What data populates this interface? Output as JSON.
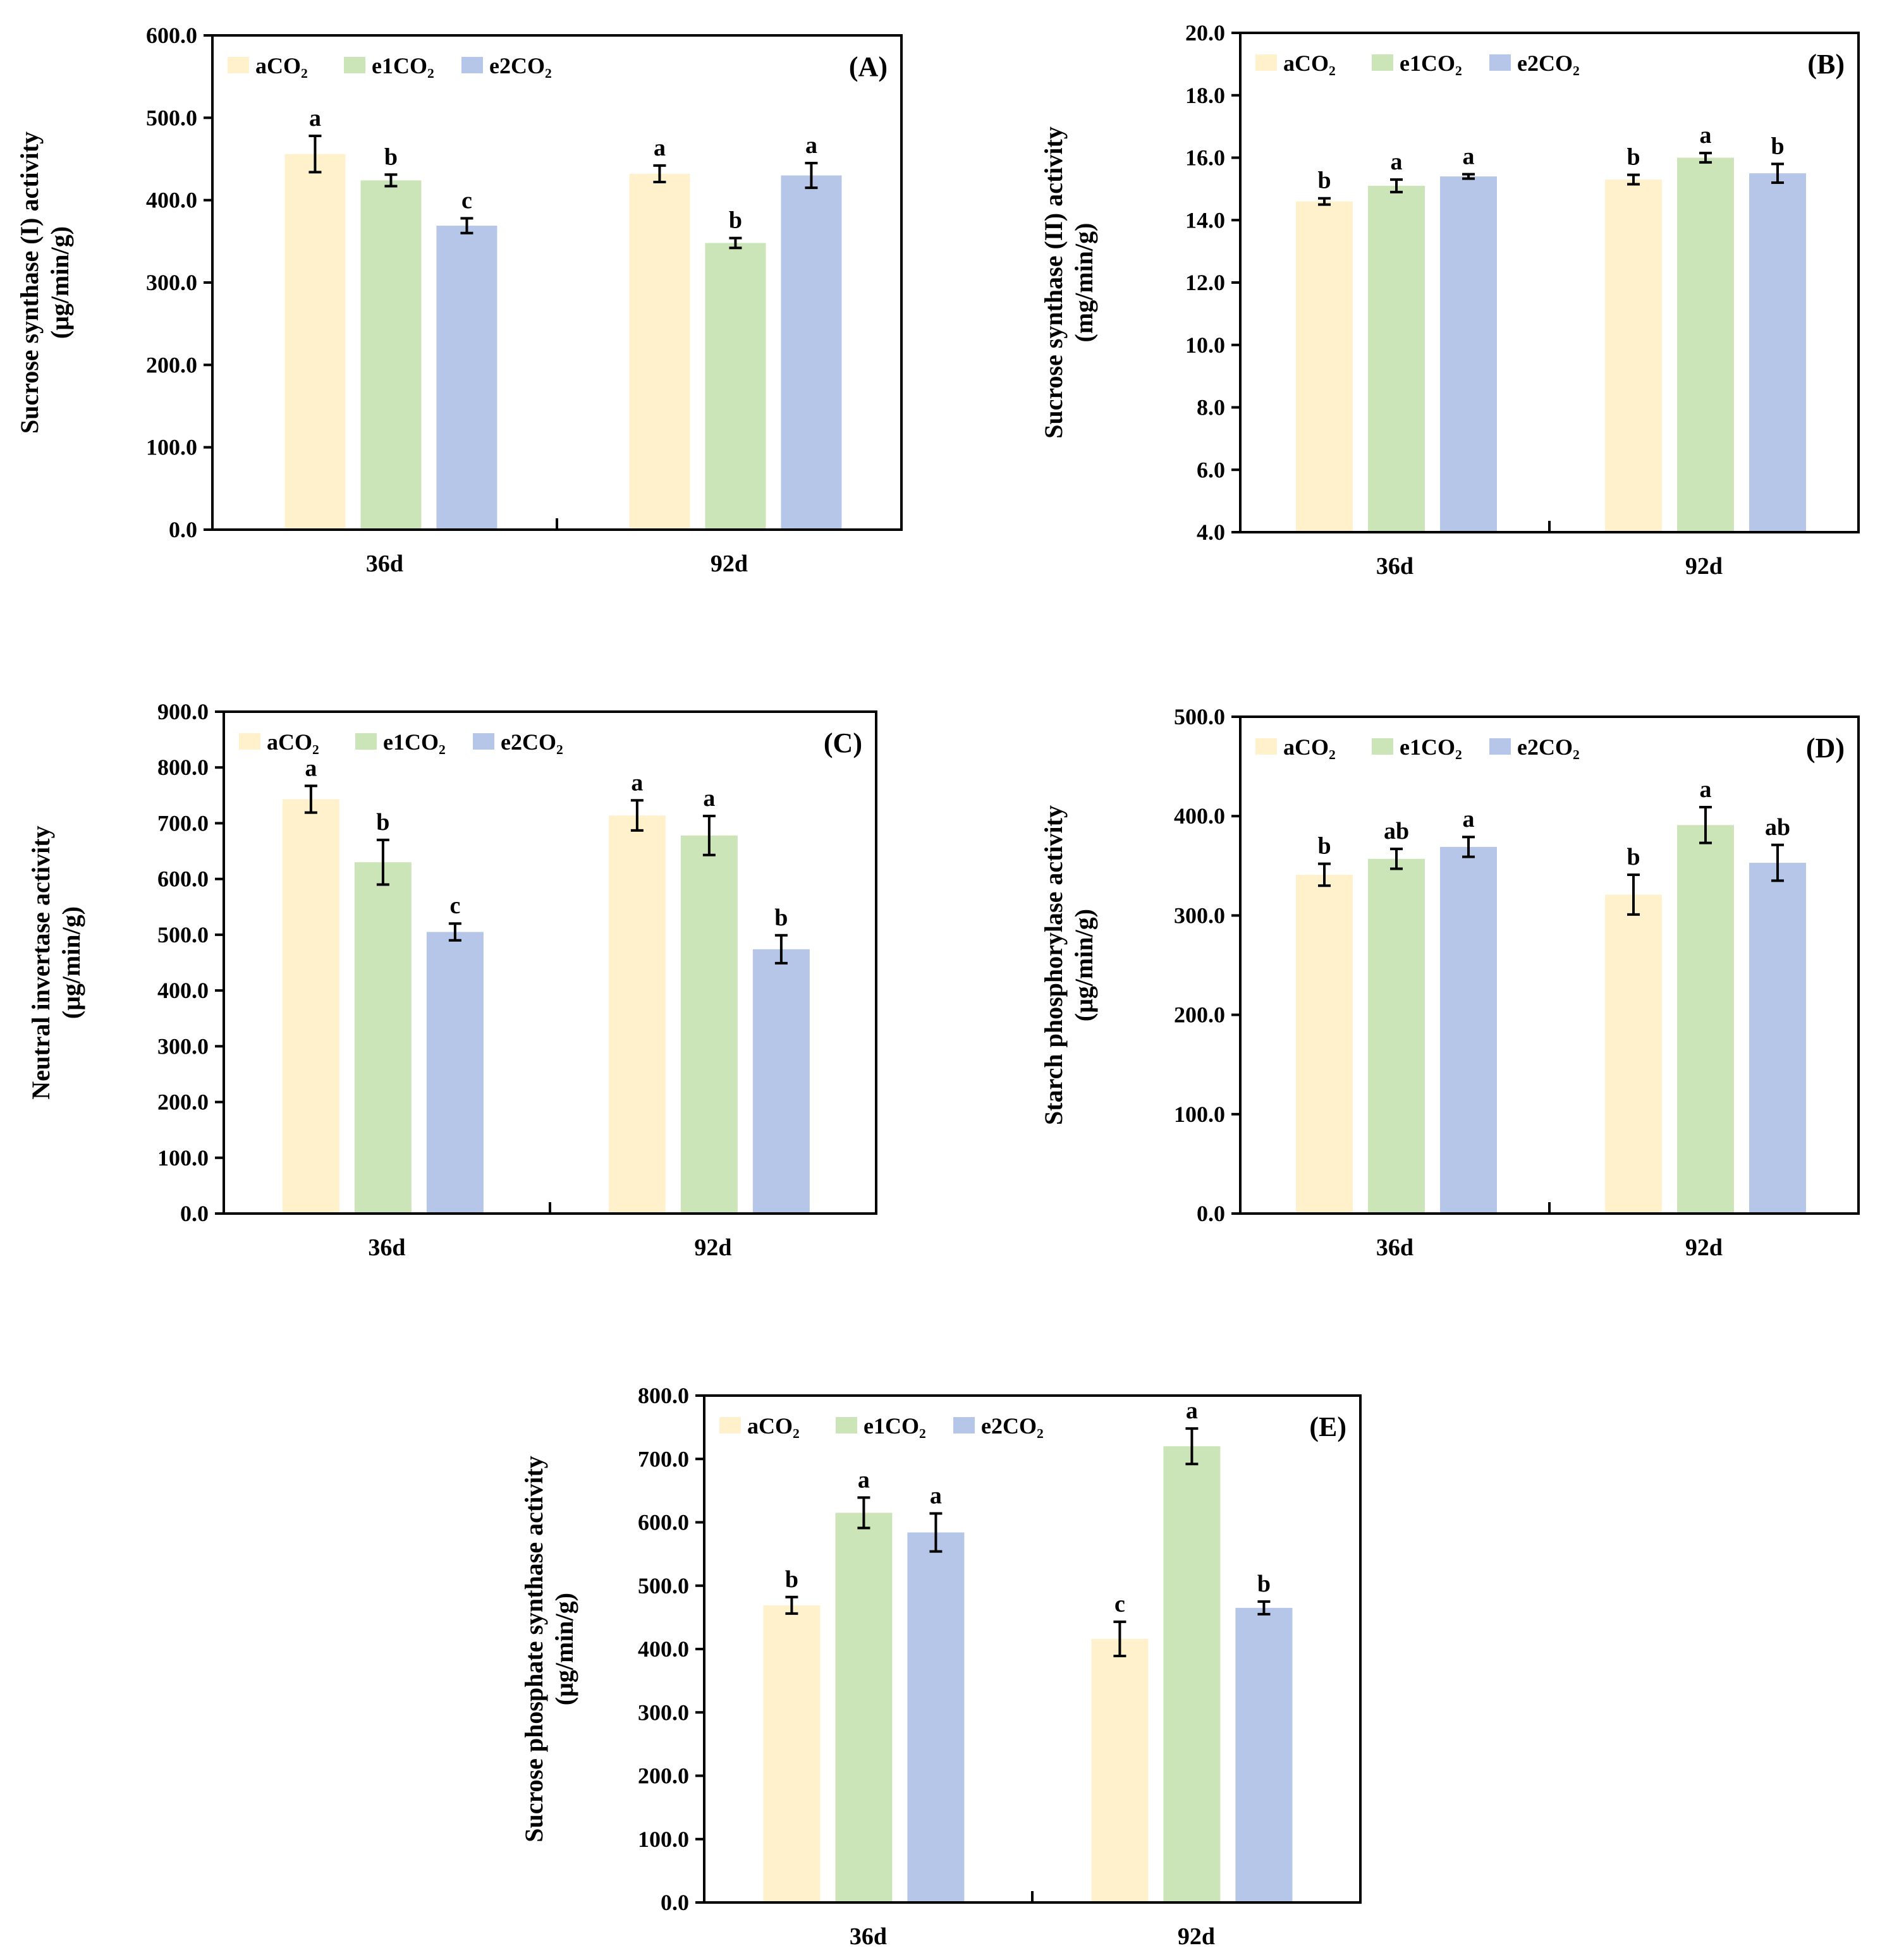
{
  "colors": {
    "aCO2": "#fff1cc",
    "e1CO2": "#cce5b8",
    "e2CO2": "#b5c6e8",
    "axis": "#000000"
  },
  "chart_data": [
    {
      "type": "bar",
      "panel": "(A)",
      "ylabel": [
        "Sucrose synthase (I) activity",
        "(μg/min/g)"
      ],
      "categories": [
        "36d",
        "92d"
      ],
      "ylim": [
        0,
        600
      ],
      "yticks": [
        0,
        100,
        200,
        300,
        400,
        500,
        600
      ],
      "tick_decimals": 1,
      "legend": "top-left",
      "series": [
        {
          "name": "aCO₂",
          "values": [
            456,
            432
          ],
          "errors": [
            22,
            10
          ],
          "letters": [
            "a",
            "a"
          ]
        },
        {
          "name": "e1CO₂",
          "values": [
            424,
            348
          ],
          "errors": [
            7,
            6
          ],
          "letters": [
            "b",
            "b"
          ]
        },
        {
          "name": "e2CO₂",
          "values": [
            369,
            430
          ],
          "errors": [
            9,
            15
          ],
          "letters": [
            "c",
            "a"
          ]
        }
      ]
    },
    {
      "type": "bar",
      "panel": "(B)",
      "ylabel": [
        "Sucrose synthase (II) activity",
        "(mg/min/g)"
      ],
      "categories": [
        "36d",
        "92d"
      ],
      "ylim": [
        4,
        20
      ],
      "yticks": [
        4,
        6,
        8,
        10,
        12,
        14,
        16,
        18,
        20
      ],
      "tick_decimals": 1,
      "legend": "top-left",
      "series": [
        {
          "name": "aCO₂",
          "values": [
            14.6,
            15.3
          ],
          "errors": [
            0.1,
            0.15
          ],
          "letters": [
            "b",
            "b"
          ]
        },
        {
          "name": "e1CO₂",
          "values": [
            15.1,
            16.0
          ],
          "errors": [
            0.2,
            0.15
          ],
          "letters": [
            "a",
            "a"
          ]
        },
        {
          "name": "e2CO₂",
          "values": [
            15.4,
            15.5
          ],
          "errors": [
            0.07,
            0.3
          ],
          "letters": [
            "a",
            "b"
          ]
        }
      ]
    },
    {
      "type": "bar",
      "panel": "(C)",
      "ylabel": [
        "Neutral invertase  activity",
        "(μg/min/g)"
      ],
      "categories": [
        "36d",
        "92d"
      ],
      "ylim": [
        0,
        900
      ],
      "yticks": [
        0,
        100,
        200,
        300,
        400,
        500,
        600,
        700,
        800,
        900
      ],
      "tick_decimals": 1,
      "legend": "top-left",
      "series": [
        {
          "name": "aCO₂",
          "values": [
            743,
            714
          ],
          "errors": [
            24,
            27
          ],
          "letters": [
            "a",
            "a"
          ]
        },
        {
          "name": "e1CO₂",
          "values": [
            630,
            678
          ],
          "errors": [
            40,
            35
          ],
          "letters": [
            "b",
            "a"
          ]
        },
        {
          "name": "e2CO₂",
          "values": [
            505,
            474
          ],
          "errors": [
            15,
            25
          ],
          "letters": [
            "c",
            "b"
          ]
        }
      ]
    },
    {
      "type": "bar",
      "panel": "(D)",
      "ylabel": [
        "Starch phosphorylase  activity",
        "(μg/min/g)"
      ],
      "categories": [
        "36d",
        "92d"
      ],
      "ylim": [
        0,
        500
      ],
      "yticks": [
        0,
        100,
        200,
        300,
        400,
        500
      ],
      "tick_decimals": 1,
      "legend": "top-left",
      "series": [
        {
          "name": "aCO₂",
          "values": [
            341,
            321
          ],
          "errors": [
            11,
            20
          ],
          "letters": [
            "b",
            "b"
          ]
        },
        {
          "name": "e1CO₂",
          "values": [
            357,
            391
          ],
          "errors": [
            10,
            18
          ],
          "letters": [
            "ab",
            "a"
          ]
        },
        {
          "name": "e2CO₂",
          "values": [
            369,
            353
          ],
          "errors": [
            10,
            18
          ],
          "letters": [
            "a",
            "ab"
          ]
        }
      ]
    },
    {
      "type": "bar",
      "panel": "(E)",
      "ylabel": [
        "Sucrose phosphate synthase activity",
        "(μg/min/g)"
      ],
      "categories": [
        "36d",
        "92d"
      ],
      "ylim": [
        0,
        800
      ],
      "yticks": [
        0,
        100,
        200,
        300,
        400,
        500,
        600,
        700,
        800
      ],
      "tick_decimals": 1,
      "legend": "top-left",
      "series": [
        {
          "name": "aCO₂",
          "values": [
            469,
            416
          ],
          "errors": [
            13,
            27
          ],
          "letters": [
            "b",
            "c"
          ]
        },
        {
          "name": "e1CO₂",
          "values": [
            615,
            720
          ],
          "errors": [
            24,
            28
          ],
          "letters": [
            "a",
            "a"
          ]
        },
        {
          "name": "e2CO₂",
          "values": [
            584,
            465
          ],
          "errors": [
            30,
            10
          ],
          "letters": [
            "a",
            "b"
          ]
        }
      ]
    }
  ]
}
